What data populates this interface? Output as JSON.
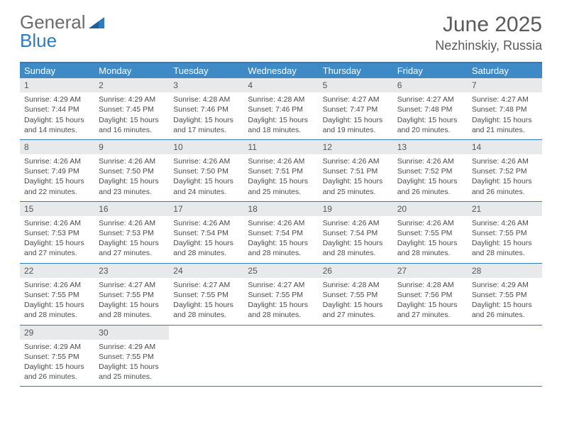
{
  "brand": {
    "part1": "General",
    "part2": "Blue"
  },
  "title": "June 2025",
  "location": "Nezhinskiy, Russia",
  "colors": {
    "accent": "#3d8ac7",
    "rule": "#2f7bbf",
    "daynum_bg": "#e7e9ea",
    "text": "#4a4a4a",
    "title": "#5a5a5a"
  },
  "dow": [
    "Sunday",
    "Monday",
    "Tuesday",
    "Wednesday",
    "Thursday",
    "Friday",
    "Saturday"
  ],
  "weeks": [
    [
      {
        "n": "1",
        "sr": "Sunrise: 4:29 AM",
        "ss": "Sunset: 7:44 PM",
        "dl": "Daylight: 15 hours and 14 minutes."
      },
      {
        "n": "2",
        "sr": "Sunrise: 4:29 AM",
        "ss": "Sunset: 7:45 PM",
        "dl": "Daylight: 15 hours and 16 minutes."
      },
      {
        "n": "3",
        "sr": "Sunrise: 4:28 AM",
        "ss": "Sunset: 7:46 PM",
        "dl": "Daylight: 15 hours and 17 minutes."
      },
      {
        "n": "4",
        "sr": "Sunrise: 4:28 AM",
        "ss": "Sunset: 7:46 PM",
        "dl": "Daylight: 15 hours and 18 minutes."
      },
      {
        "n": "5",
        "sr": "Sunrise: 4:27 AM",
        "ss": "Sunset: 7:47 PM",
        "dl": "Daylight: 15 hours and 19 minutes."
      },
      {
        "n": "6",
        "sr": "Sunrise: 4:27 AM",
        "ss": "Sunset: 7:48 PM",
        "dl": "Daylight: 15 hours and 20 minutes."
      },
      {
        "n": "7",
        "sr": "Sunrise: 4:27 AM",
        "ss": "Sunset: 7:48 PM",
        "dl": "Daylight: 15 hours and 21 minutes."
      }
    ],
    [
      {
        "n": "8",
        "sr": "Sunrise: 4:26 AM",
        "ss": "Sunset: 7:49 PM",
        "dl": "Daylight: 15 hours and 22 minutes."
      },
      {
        "n": "9",
        "sr": "Sunrise: 4:26 AM",
        "ss": "Sunset: 7:50 PM",
        "dl": "Daylight: 15 hours and 23 minutes."
      },
      {
        "n": "10",
        "sr": "Sunrise: 4:26 AM",
        "ss": "Sunset: 7:50 PM",
        "dl": "Daylight: 15 hours and 24 minutes."
      },
      {
        "n": "11",
        "sr": "Sunrise: 4:26 AM",
        "ss": "Sunset: 7:51 PM",
        "dl": "Daylight: 15 hours and 25 minutes."
      },
      {
        "n": "12",
        "sr": "Sunrise: 4:26 AM",
        "ss": "Sunset: 7:51 PM",
        "dl": "Daylight: 15 hours and 25 minutes."
      },
      {
        "n": "13",
        "sr": "Sunrise: 4:26 AM",
        "ss": "Sunset: 7:52 PM",
        "dl": "Daylight: 15 hours and 26 minutes."
      },
      {
        "n": "14",
        "sr": "Sunrise: 4:26 AM",
        "ss": "Sunset: 7:52 PM",
        "dl": "Daylight: 15 hours and 26 minutes."
      }
    ],
    [
      {
        "n": "15",
        "sr": "Sunrise: 4:26 AM",
        "ss": "Sunset: 7:53 PM",
        "dl": "Daylight: 15 hours and 27 minutes."
      },
      {
        "n": "16",
        "sr": "Sunrise: 4:26 AM",
        "ss": "Sunset: 7:53 PM",
        "dl": "Daylight: 15 hours and 27 minutes."
      },
      {
        "n": "17",
        "sr": "Sunrise: 4:26 AM",
        "ss": "Sunset: 7:54 PM",
        "dl": "Daylight: 15 hours and 28 minutes."
      },
      {
        "n": "18",
        "sr": "Sunrise: 4:26 AM",
        "ss": "Sunset: 7:54 PM",
        "dl": "Daylight: 15 hours and 28 minutes."
      },
      {
        "n": "19",
        "sr": "Sunrise: 4:26 AM",
        "ss": "Sunset: 7:54 PM",
        "dl": "Daylight: 15 hours and 28 minutes."
      },
      {
        "n": "20",
        "sr": "Sunrise: 4:26 AM",
        "ss": "Sunset: 7:55 PM",
        "dl": "Daylight: 15 hours and 28 minutes."
      },
      {
        "n": "21",
        "sr": "Sunrise: 4:26 AM",
        "ss": "Sunset: 7:55 PM",
        "dl": "Daylight: 15 hours and 28 minutes."
      }
    ],
    [
      {
        "n": "22",
        "sr": "Sunrise: 4:26 AM",
        "ss": "Sunset: 7:55 PM",
        "dl": "Daylight: 15 hours and 28 minutes."
      },
      {
        "n": "23",
        "sr": "Sunrise: 4:27 AM",
        "ss": "Sunset: 7:55 PM",
        "dl": "Daylight: 15 hours and 28 minutes."
      },
      {
        "n": "24",
        "sr": "Sunrise: 4:27 AM",
        "ss": "Sunset: 7:55 PM",
        "dl": "Daylight: 15 hours and 28 minutes."
      },
      {
        "n": "25",
        "sr": "Sunrise: 4:27 AM",
        "ss": "Sunset: 7:55 PM",
        "dl": "Daylight: 15 hours and 28 minutes."
      },
      {
        "n": "26",
        "sr": "Sunrise: 4:28 AM",
        "ss": "Sunset: 7:55 PM",
        "dl": "Daylight: 15 hours and 27 minutes."
      },
      {
        "n": "27",
        "sr": "Sunrise: 4:28 AM",
        "ss": "Sunset: 7:56 PM",
        "dl": "Daylight: 15 hours and 27 minutes."
      },
      {
        "n": "28",
        "sr": "Sunrise: 4:29 AM",
        "ss": "Sunset: 7:55 PM",
        "dl": "Daylight: 15 hours and 26 minutes."
      }
    ],
    [
      {
        "n": "29",
        "sr": "Sunrise: 4:29 AM",
        "ss": "Sunset: 7:55 PM",
        "dl": "Daylight: 15 hours and 26 minutes."
      },
      {
        "n": "30",
        "sr": "Sunrise: 4:29 AM",
        "ss": "Sunset: 7:55 PM",
        "dl": "Daylight: 15 hours and 25 minutes."
      },
      null,
      null,
      null,
      null,
      null
    ]
  ]
}
